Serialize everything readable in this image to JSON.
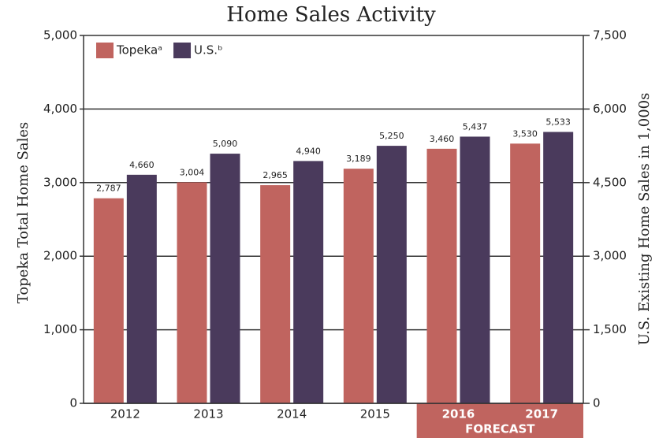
{
  "chart_data": {
    "type": "bar",
    "title": "Home Sales Activity",
    "ylabel": "Topeka Total Home Sales",
    "y2label": "U.S. Existing Home Sales in 1,000s",
    "categories": [
      "2012",
      "2013",
      "2014",
      "2015",
      "2016",
      "2017"
    ],
    "forecast": [
      false,
      false,
      false,
      false,
      true,
      true
    ],
    "forecast_label": "FORECAST",
    "series": [
      {
        "name": "Topekaᵃ",
        "color": "#c0645f",
        "values": [
          2787,
          3004,
          2965,
          3189,
          3460,
          3530
        ],
        "value_labels": [
          "2,787",
          "3,004",
          "2,965",
          "3,189",
          "3,460",
          "3,530"
        ]
      },
      {
        "name": "U.S.ᵇ",
        "color": "#4a3a5c",
        "axis": "y2",
        "values": [
          4660,
          5090,
          4940,
          5250,
          5437,
          5533
        ],
        "value_labels": [
          "4,660",
          "5,090",
          "4,940",
          "5,250",
          "5,437",
          "5,533"
        ]
      }
    ],
    "ylim": [
      0,
      5000
    ],
    "yticks": [
      0,
      {
        "value": 1000,
        "label": "1,000"
      },
      {
        "value": 2000,
        "label": "2,000"
      },
      {
        "value": 3000,
        "label": "3,000"
      },
      {
        "value": 4000,
        "label": "4,000"
      },
      {
        "value": 5000,
        "label": "5,000"
      }
    ],
    "y2lim": [
      0,
      7500
    ],
    "y2ticks": [
      0,
      {
        "value": 1500,
        "label": "1,500"
      },
      {
        "value": 3000,
        "label": "3,000"
      },
      {
        "value": 4500,
        "label": "4,500"
      },
      {
        "value": 6000,
        "label": "6,000"
      },
      {
        "value": 7500,
        "label": "7,500"
      }
    ],
    "grid": true,
    "legend": "top-left"
  }
}
